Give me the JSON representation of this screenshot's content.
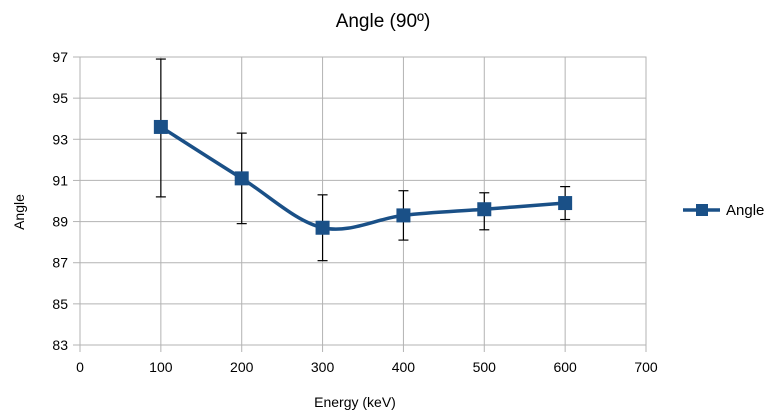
{
  "chart_data": {
    "type": "line",
    "title": "Angle (90º)",
    "xlabel": "Energy (keV)",
    "ylabel": "Angle",
    "xlim": [
      0,
      700
    ],
    "ylim": [
      83,
      97
    ],
    "x_ticks": [
      0,
      100,
      200,
      300,
      400,
      500,
      600,
      700
    ],
    "y_ticks": [
      83,
      85,
      87,
      89,
      91,
      93,
      95,
      97
    ],
    "grid": true,
    "smooth": true,
    "legend_position": "right",
    "series": [
      {
        "name": "Angle",
        "color": "#1a5087",
        "marker": "square",
        "x": [
          100,
          200,
          300,
          400,
          500,
          600
        ],
        "y": [
          93.6,
          91.1,
          88.7,
          89.3,
          89.6,
          89.9
        ],
        "err_low": [
          90.2,
          88.9,
          87.1,
          88.1,
          88.6,
          89.1
        ],
        "err_high": [
          96.9,
          93.3,
          90.3,
          90.5,
          90.4,
          90.7
        ]
      }
    ]
  }
}
